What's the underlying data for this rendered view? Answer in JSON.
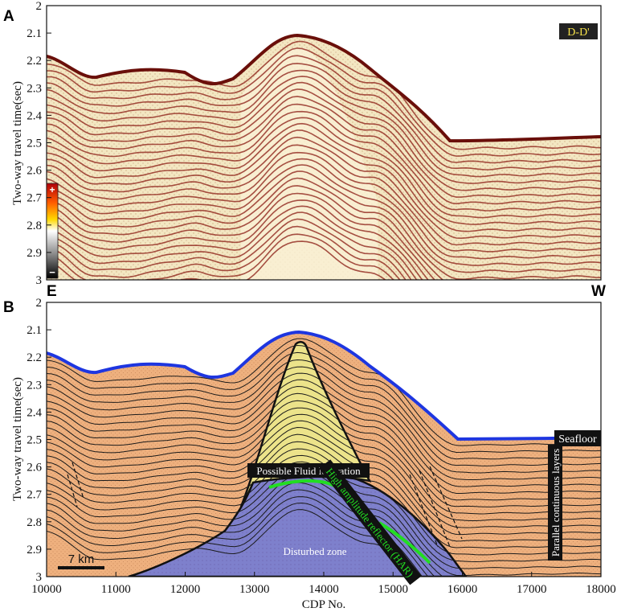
{
  "panel_a": {
    "letter": "A",
    "line_badge": "D-D'",
    "left_end": "E",
    "right_end": "W",
    "scale_plus": "+",
    "scale_minus": "−",
    "colors": {
      "dark_red": "#8a1a12",
      "amplitude_bg": "#f2e4b8"
    }
  },
  "panel_b": {
    "letter": "B",
    "labels": {
      "seafloor": "Seafloor",
      "fluid_migration": "Possible Fluid Migration",
      "har": "High amplitude reflector (HAR)",
      "disturbed": "Disturbed zone",
      "parallel": "Parallel continuous layers"
    },
    "scale_bar": "7 km",
    "colors": {
      "sediment": "#eeb07e",
      "disturbed": "#7e80cc",
      "chimney": "#ece38a",
      "seafloor": "#1e36e0",
      "har": "#22dd22"
    }
  },
  "yaxis": {
    "label": "Two-way travel time(sec)",
    "ticks": [
      "2",
      "2.1",
      "2.2",
      "2.3",
      "2.4",
      "2.5",
      "2.6",
      "2.7",
      "2.8",
      "2.9",
      "3"
    ]
  },
  "xaxis": {
    "label": "CDP No.",
    "ticks": [
      "10000",
      "11000",
      "12000",
      "13000",
      "14000",
      "15000",
      "16000",
      "17000",
      "18000"
    ]
  }
}
